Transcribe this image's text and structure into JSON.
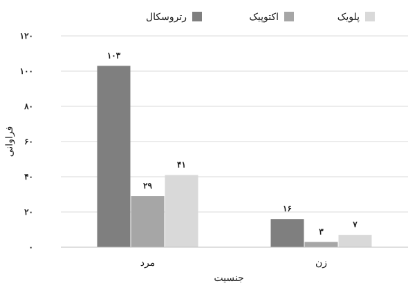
{
  "chart_data": {
    "type": "bar",
    "categories": [
      "مرد",
      "زن"
    ],
    "series": [
      {
        "name": "رتروسکال",
        "values": [
          103,
          16
        ],
        "value_labels": [
          "۱۰۳",
          "۱۶"
        ],
        "color": "#7f7f7f"
      },
      {
        "name": "اکتوپیک",
        "values": [
          29,
          3
        ],
        "value_labels": [
          "۲۹",
          "۳"
        ],
        "color": "#a6a6a6"
      },
      {
        "name": "پلویک",
        "values": [
          41,
          7
        ],
        "value_labels": [
          "۴۱",
          "۷"
        ],
        "color": "#d9d9d9"
      }
    ],
    "xlabel": "جنسیت",
    "ylabel": "فراوانی",
    "ylim": [
      0,
      120
    ],
    "yticks": [
      0,
      20,
      40,
      60,
      80,
      100,
      120
    ],
    "ytick_labels": [
      "۰",
      "۲۰",
      "۴۰",
      "۶۰",
      "۸۰",
      "۱۰۰",
      "۱۲۰"
    ],
    "grid": true,
    "grid_color": "#d9d9d9",
    "legend_position": "top"
  }
}
